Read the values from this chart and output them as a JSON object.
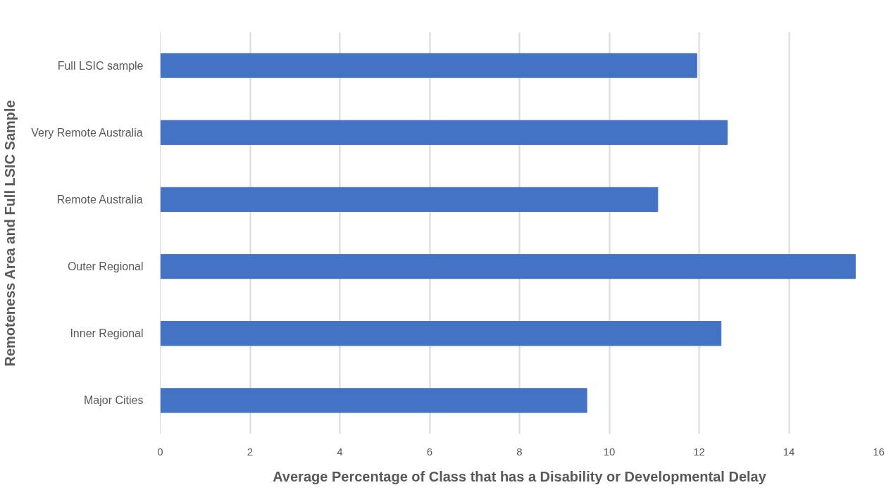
{
  "chart_data": {
    "type": "bar",
    "orientation": "horizontal",
    "xlabel": "Average Percentage of Class that has a Disability or Developmental Delay",
    "ylabel": "Remoteness Area and Full LSIC Sample",
    "categories": [
      "Full LSIC sample",
      "Very Remote Australia",
      "Remote Australia",
      "Outer Regional",
      "Inner Regional",
      "Major Cities"
    ],
    "values": [
      11.95,
      12.63,
      11.08,
      15.48,
      12.49,
      9.5
    ],
    "color": "#4472c4",
    "xlim": [
      0,
      16
    ],
    "xticks": [
      0,
      2,
      4,
      6,
      8,
      10,
      12,
      14,
      16
    ],
    "grid": "x"
  }
}
